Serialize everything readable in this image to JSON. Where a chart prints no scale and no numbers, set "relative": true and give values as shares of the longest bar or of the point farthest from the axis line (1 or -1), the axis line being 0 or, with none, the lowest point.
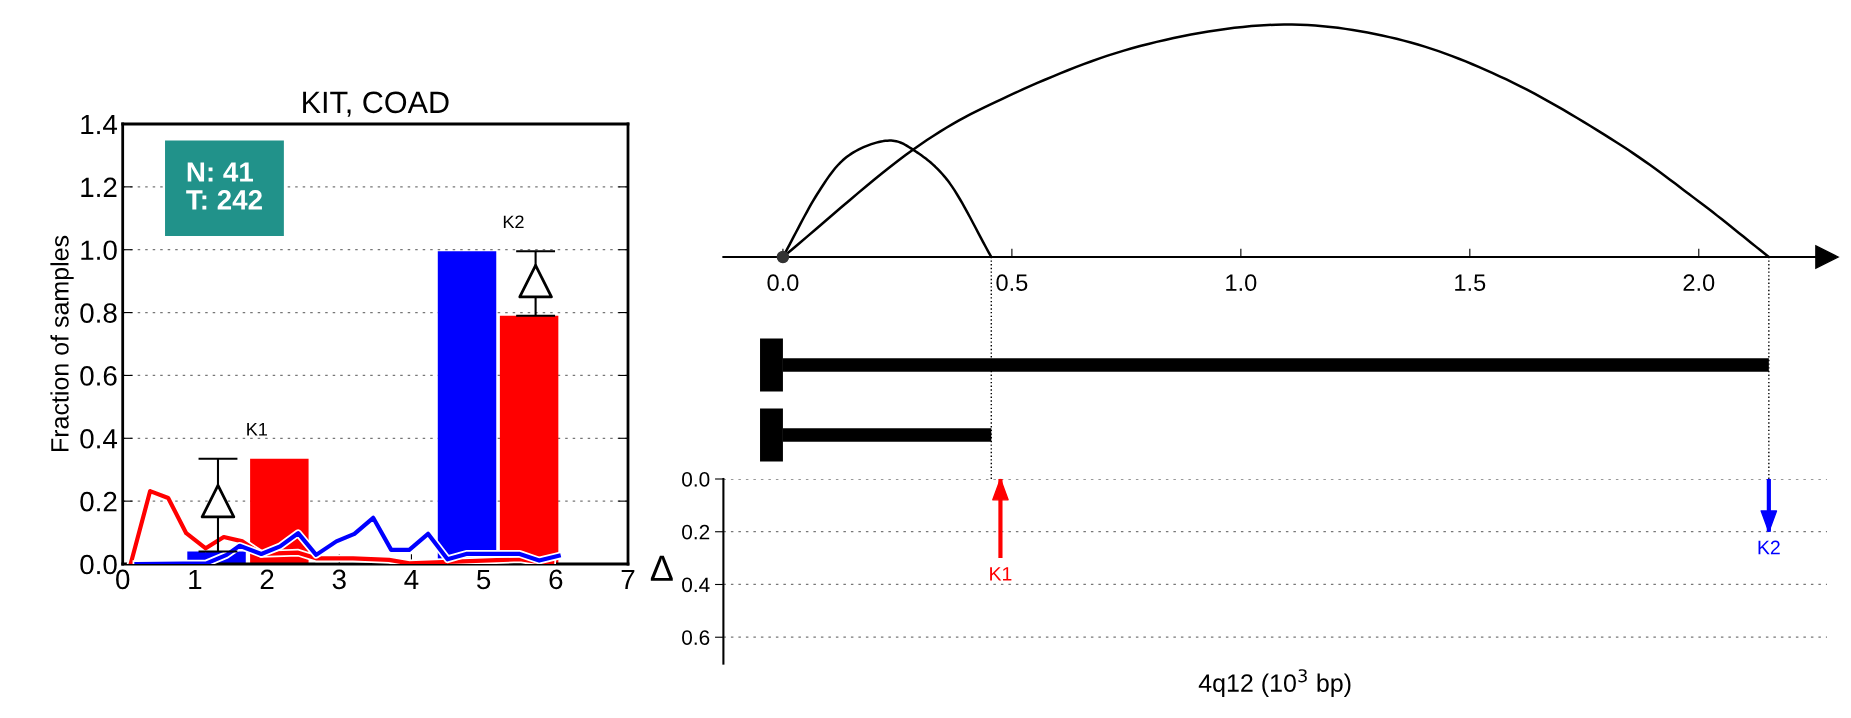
{
  "chart_data": [
    {
      "type": "bar",
      "title": "KIT, COAD",
      "ylabel": "Fraction of samples",
      "xlim": [
        0,
        7
      ],
      "xticks": [
        0,
        1,
        2,
        3,
        4,
        5,
        6,
        7
      ],
      "ylim": [
        0,
        1.4
      ],
      "yticks": [
        {
          "value": 0,
          "label": "0.0"
        },
        {
          "value": 0.2,
          "label": "0.2"
        },
        {
          "value": 0.4,
          "label": "0.4"
        },
        {
          "value": 0.6,
          "label": "0.6"
        },
        {
          "value": 0.8,
          "label": "0.8"
        },
        {
          "value": 1.0,
          "label": "1.0"
        },
        {
          "value": 1.2,
          "label": "1.2"
        },
        {
          "value": 1.4,
          "label": "1.4"
        }
      ],
      "grid": "y",
      "series": [
        {
          "type": "bar",
          "x": [
            1.3,
            2.17,
            4.77,
            5.63
          ],
          "values": [
            0.04,
            0.335,
            0.995,
            0.79
          ],
          "colors": [
            "#0000ff",
            "#ff0000",
            "#0000ff",
            "#ff0000"
          ]
        },
        {
          "type": "line",
          "color": "#ff0000",
          "x": [
            0.11,
            0.38,
            0.63,
            0.88,
            1.15,
            1.4,
            1.66,
            1.92,
            2.43,
            2.68,
            3.19,
            3.69,
            3.97,
            5.5,
            5.77,
            5.95
          ],
          "values": [
            0,
            0.232,
            0.21,
            0.098,
            0.05,
            0.086,
            0.072,
            0.032,
            0.036,
            0.018,
            0.018,
            0.013,
            0.002,
            0.015,
            0.006,
            0.004
          ]
        },
        {
          "type": "line",
          "color": "#0000ff",
          "x": [
            0.19,
            1.16,
            1.44,
            1.62,
            1.92,
            2.18,
            2.43,
            2.68,
            2.96,
            3.21,
            3.47,
            3.72,
            3.97,
            4.23,
            4.5,
            4.76,
            5.5,
            5.77,
            6.04
          ],
          "values": [
            0,
            0.002,
            0.029,
            0.058,
            0.032,
            0.056,
            0.098,
            0.029,
            0.072,
            0.096,
            0.147,
            0.045,
            0.045,
            0.096,
            0.015,
            0.032,
            0.032,
            0.011,
            0.026
          ]
        },
        {
          "type": "scatter",
          "color": "#000000",
          "marker": "triangle",
          "x": [
            1.32,
            5.72
          ],
          "values": [
            0.2,
            0.9
          ],
          "errors": [
            [
              0.04,
              0.335
            ],
            [
              0.79,
              0.995
            ]
          ],
          "value_labels": [
            "K1",
            "K2"
          ]
        }
      ],
      "annotations": [
        "N: 41\nT: 242"
      ]
    },
    {
      "type": "line",
      "relative": true,
      "xlim": [
        -0.13,
        2.28
      ],
      "tick_labels": "x",
      "xticks": [
        {
          "value": 0,
          "label": "0.0"
        },
        {
          "value": 0.5,
          "label": "0.5"
        },
        {
          "value": 1.0,
          "label": "1.0"
        },
        {
          "value": 1.5,
          "label": "1.5"
        },
        {
          "value": 2.0,
          "label": "2.0"
        }
      ],
      "series": [
        {
          "color": "#000000",
          "x": [
            0,
            0.075,
            0.139,
            0.224,
            0.284,
            0.364,
            0.455
          ],
          "values": [
            0,
            0.271,
            0.43,
            0.5,
            0.462,
            0.318,
            0
          ]
        },
        {
          "color": "#000000",
          "x": [
            0,
            0.284,
            0.508,
            0.78,
            1.077,
            1.34,
            1.58,
            1.82,
            2.0,
            2.153
          ],
          "values": [
            0,
            0.462,
            0.707,
            0.908,
            1.0,
            0.939,
            0.764,
            0.494,
            0.239,
            0
          ]
        }
      ]
    },
    {
      "type": "bar",
      "orientation": "horizontal",
      "categories": [
        null,
        null
      ],
      "xlim": [
        -0.13,
        2.28
      ],
      "tick_labels": false,
      "series": [
        {
          "color": "#000000",
          "values": [
            -0.05,
            -0.05
          ]
        },
        {
          "color": "#000000",
          "values": [
            2.153,
            0.455
          ]
        }
      ],
      "ref_lines": [
        {
          "axis": "x",
          "value": 0.455,
          "line_style": "dotted",
          "color": "#000000"
        },
        {
          "axis": "x",
          "value": 2.153,
          "line_style": "dotted",
          "color": "#000000"
        }
      ]
    },
    {
      "type": "bar",
      "x": [
        0.475,
        2.153
      ],
      "base": [
        0.3,
        0
      ],
      "values": [
        -0.3,
        0.2
      ],
      "colors": [
        "#ff0000",
        "#0000ff"
      ],
      "value_labels": [
        "K1",
        "K2"
      ],
      "xlim": [
        -0.13,
        2.28
      ],
      "ylim": [
        0.7,
        0
      ],
      "yticks": [
        {
          "value": 0,
          "label": "0.0"
        },
        {
          "value": 0.2,
          "label": "0.2"
        },
        {
          "value": 0.4,
          "label": "0.4"
        },
        {
          "value": 0.6,
          "label": "0.6"
        }
      ],
      "grid": "y",
      "tick_labels": "y",
      "ylabel": "Δ",
      "xlabel": "4q12 (10$^{3}$ bp)"
    }
  ]
}
